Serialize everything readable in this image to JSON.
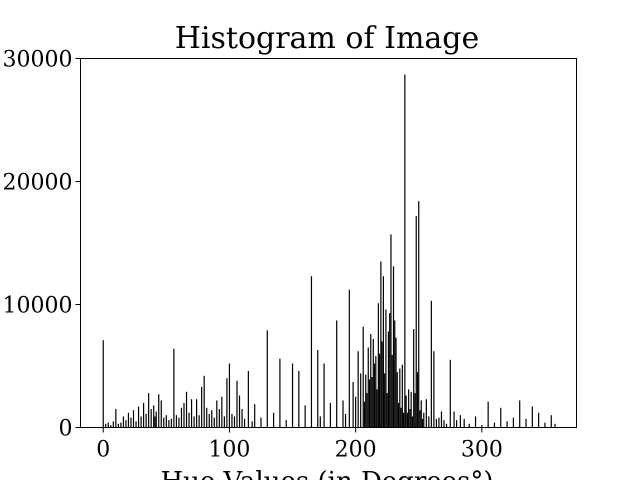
{
  "chart_data": {
    "type": "bar",
    "title": "Histogram of Image",
    "xlabel": "Hue Values (in Degrees°)",
    "ylabel": "",
    "xlim": [
      -18,
      375
    ],
    "ylim": [
      0,
      30000
    ],
    "xticks": [
      0,
      100,
      200,
      300
    ],
    "yticks": [
      0,
      10000,
      20000,
      30000
    ],
    "xtick_labels": [
      "0",
      "100",
      "200",
      "300"
    ],
    "ytick_labels": [
      "0",
      "10000",
      "20000",
      "30000"
    ],
    "grid": false,
    "legend": "none",
    "bar_color": "#000000",
    "x": [
      0,
      2,
      4,
      6,
      8,
      10,
      12,
      14,
      16,
      18,
      20,
      22,
      24,
      26,
      28,
      30,
      32,
      34,
      36,
      38,
      40,
      41,
      42,
      44,
      46,
      48,
      50,
      52,
      54,
      56,
      58,
      60,
      62,
      64,
      66,
      68,
      70,
      72,
      74,
      76,
      78,
      80,
      82,
      84,
      86,
      88,
      90,
      92,
      94,
      96,
      98,
      100,
      102,
      104,
      106,
      108,
      110,
      112,
      115,
      118,
      120,
      125,
      130,
      135,
      140,
      145,
      150,
      155,
      160,
      165,
      170,
      172,
      175,
      180,
      185,
      190,
      192,
      195,
      198,
      200,
      202,
      204,
      206,
      207,
      208,
      209,
      210,
      211,
      212,
      213,
      214,
      215,
      216,
      217,
      218,
      219,
      220,
      221,
      222,
      223,
      224,
      225,
      226,
      227,
      228,
      229,
      230,
      231,
      232,
      233,
      234,
      235,
      236,
      237,
      238,
      239,
      240,
      241,
      242,
      243,
      244,
      245,
      246,
      247,
      248,
      249,
      250,
      251,
      252,
      253,
      254,
      256,
      258,
      260,
      262,
      264,
      266,
      268,
      270,
      272,
      275,
      278,
      280,
      283,
      286,
      290,
      295,
      300,
      305,
      310,
      315,
      320,
      325,
      330,
      335,
      340,
      345,
      350,
      355,
      358
    ],
    "values": [
      7100,
      300,
      400,
      200,
      500,
      1500,
      300,
      400,
      900,
      600,
      1200,
      800,
      1400,
      500,
      1700,
      900,
      2000,
      1100,
      2800,
      1500,
      1800,
      900,
      1300,
      2700,
      2200,
      800,
      1000,
      600,
      700,
      6400,
      1000,
      800,
      1600,
      2000,
      2900,
      1200,
      2300,
      900,
      2300,
      1000,
      3300,
      4200,
      1600,
      1100,
      1400,
      800,
      2200,
      1500,
      2500,
      900,
      4000,
      5200,
      1100,
      900,
      3800,
      2600,
      1500,
      700,
      4600,
      500,
      1900,
      800,
      7900,
      1200,
      5600,
      600,
      5200,
      4600,
      1800,
      12300,
      6300,
      900,
      5200,
      2000,
      8700,
      2200,
      1100,
      11200,
      3700,
      2500,
      6200,
      4400,
      8200,
      2100,
      4300,
      2800,
      6500,
      3900,
      7600,
      4100,
      7200,
      5200,
      5800,
      3100,
      10100,
      6000,
      13500,
      7000,
      12300,
      4400,
      9600,
      2800,
      7800,
      9300,
      15700,
      5900,
      13100,
      8700,
      7300,
      4500,
      2000,
      4800,
      1600,
      5100,
      1200,
      28700,
      2600,
      1200,
      3100,
      1500,
      2900,
      900,
      8000,
      2800,
      17200,
      4500,
      18400,
      1400,
      2200,
      700,
      1200,
      2300,
      900,
      10300,
      6200,
      700,
      800,
      1300,
      600,
      300,
      5500,
      1300,
      600,
      1000,
      700,
      300,
      900,
      200,
      2100,
      400,
      1600,
      500,
      800,
      2200,
      700,
      1700,
      1200,
      400,
      1000,
      300
    ]
  }
}
